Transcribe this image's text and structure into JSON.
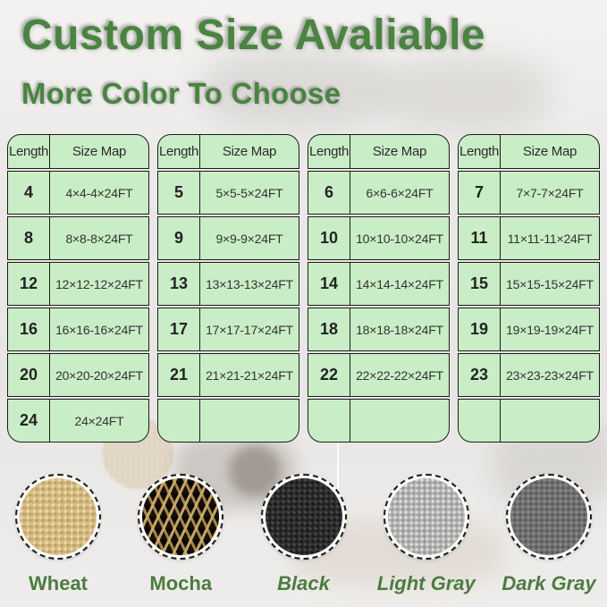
{
  "header": {
    "title": "Custom Size Avaliable",
    "subtitle": "More Color To Choose"
  },
  "size_tables": [
    {
      "headers": [
        "Length",
        "Size Map"
      ],
      "rows": [
        [
          "4",
          "4×4-4×24FT"
        ],
        [
          "8",
          "8×8-8×24FT"
        ],
        [
          "12",
          "12×12-12×24FT"
        ],
        [
          "16",
          "16×16-16×24FT"
        ],
        [
          "20",
          "20×20-20×24FT"
        ],
        [
          "24",
          "24×24FT"
        ]
      ]
    },
    {
      "headers": [
        "Length",
        "Size Map"
      ],
      "rows": [
        [
          "5",
          "5×5-5×24FT"
        ],
        [
          "9",
          "9×9-9×24FT"
        ],
        [
          "13",
          "13×13-13×24FT"
        ],
        [
          "17",
          "17×17-17×24FT"
        ],
        [
          "21",
          "21×21-21×24FT"
        ],
        [
          "",
          ""
        ]
      ]
    },
    {
      "headers": [
        "Length",
        "Size Map"
      ],
      "rows": [
        [
          "6",
          "6×6-6×24FT"
        ],
        [
          "10",
          "10×10-10×24FT"
        ],
        [
          "14",
          "14×14-14×24FT"
        ],
        [
          "18",
          "18×18-18×24FT"
        ],
        [
          "22",
          "22×22-22×24FT"
        ],
        [
          "",
          ""
        ]
      ]
    },
    {
      "headers": [
        "Length",
        "Size Map"
      ],
      "rows": [
        [
          "7",
          "7×7-7×24FT"
        ],
        [
          "11",
          "11×11-11×24FT"
        ],
        [
          "15",
          "15×15-15×24FT"
        ],
        [
          "19",
          "19×19-19×24FT"
        ],
        [
          "23",
          "23×23-23×24FT"
        ],
        [
          "",
          ""
        ]
      ]
    }
  ],
  "color_swatches": [
    {
      "label": "Wheat",
      "fabric": "wheat",
      "italic": false
    },
    {
      "label": "Mocha",
      "fabric": "mocha",
      "italic": false
    },
    {
      "label": "Black",
      "fabric": "black",
      "italic": true
    },
    {
      "label": "Light Gray",
      "fabric": "light-gray",
      "italic": true
    },
    {
      "label": "Dark Gray",
      "fabric": "dark-gray",
      "italic": true
    }
  ],
  "palette": {
    "title_green": "#4a8440",
    "label_green": "#4c7c41",
    "cell_green": "#c9edc6",
    "table_border": "#1c1c1c",
    "wheat_fabric": "#d8bd83",
    "mocha_dark": "#171009",
    "mocha_tan": "#cdac68",
    "black_fabric": "#272727",
    "light_gray_fabric": "#b4b4b2",
    "dark_gray_fabric": "#707070"
  }
}
